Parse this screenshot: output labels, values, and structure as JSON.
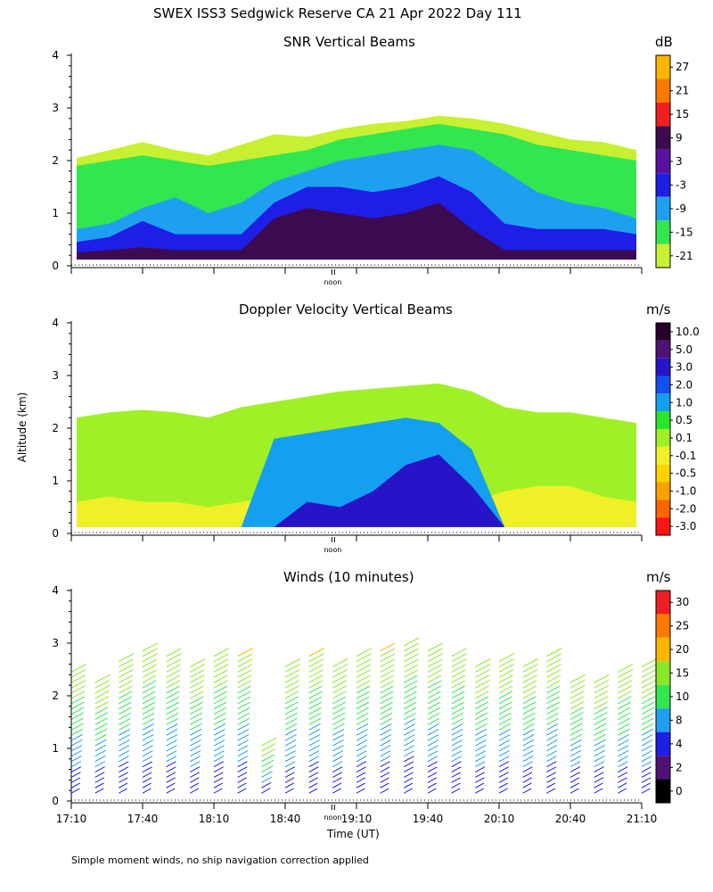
{
  "figure": {
    "title": "SWEX ISS3 Sedgwick Reserve CA  21 Apr 2022 Day 111",
    "ylabel": "Altitude (km)",
    "xlabel": "Time (UT)",
    "footnote": "Simple moment winds, no ship navigation correction applied",
    "noon_label": "noon",
    "x_tick_labels": [
      "17:10",
      "17:40",
      "18:10",
      "18:40",
      "19:10",
      "19:40",
      "20:10",
      "20:40",
      "21:10"
    ],
    "y_tick_labels": [
      "0",
      "1",
      "2",
      "3",
      "4"
    ]
  },
  "chart_data": [
    {
      "type": "heatmap",
      "title": "SNR Vertical Beams",
      "unit": "dB",
      "ylim": [
        0,
        4
      ],
      "xlim": [
        "17:10",
        "21:10"
      ],
      "colorbar": {
        "labels": [
          "27",
          "21",
          "15",
          "9",
          "3",
          "-3",
          "-9",
          "-15",
          "-21"
        ],
        "colors": [
          "#ffb400",
          "#ff7800",
          "#f01e1e",
          "#3c0a50",
          "#5a10a0",
          "#1e1ee6",
          "#1ea0f0",
          "#32e650",
          "#c8f032"
        ]
      },
      "layers": [
        {
          "name": "low",
          "color": "#c8f032",
          "top": [
            2.05,
            2.2,
            2.35,
            2.2,
            2.1,
            2.3,
            2.5,
            2.45,
            2.6,
            2.7,
            2.75,
            2.85,
            2.8,
            2.7,
            2.55,
            2.4,
            2.35,
            2.2
          ]
        },
        {
          "name": "mid",
          "color": "#32e650",
          "top": [
            1.9,
            2.0,
            2.1,
            2.0,
            1.9,
            2.0,
            2.1,
            2.2,
            2.4,
            2.5,
            2.6,
            2.7,
            2.6,
            2.5,
            2.3,
            2.2,
            2.1,
            2.0
          ]
        },
        {
          "name": "midhi",
          "color": "#1ea0f0",
          "top": [
            0.7,
            0.8,
            1.1,
            1.3,
            1.0,
            1.2,
            1.6,
            1.8,
            2.0,
            2.1,
            2.2,
            2.3,
            2.2,
            1.8,
            1.4,
            1.2,
            1.1,
            0.9
          ]
        },
        {
          "name": "high",
          "color": "#1e1ee6",
          "top": [
            0.45,
            0.55,
            0.85,
            0.6,
            0.6,
            0.6,
            1.2,
            1.5,
            1.5,
            1.4,
            1.5,
            1.7,
            1.4,
            0.8,
            0.7,
            0.7,
            0.7,
            0.6
          ]
        },
        {
          "name": "strong",
          "color": "#3c0a50",
          "top": [
            0.25,
            0.3,
            0.35,
            0.3,
            0.3,
            0.3,
            0.9,
            1.1,
            1.0,
            0.9,
            1.0,
            1.2,
            0.7,
            0.3,
            0.3,
            0.3,
            0.3,
            0.3
          ]
        }
      ]
    },
    {
      "type": "heatmap",
      "title": "Doppler Velocity Vertical Beams",
      "unit": "m/s",
      "ylim": [
        0,
        4
      ],
      "xlim": [
        "17:10",
        "21:10"
      ],
      "colorbar": {
        "labels": [
          "10.0",
          "5.0",
          "3.0",
          "2.0",
          "1.0",
          "0.5",
          "0.1",
          "-0.1",
          "-0.5",
          "-1.0",
          "-2.0",
          "-3.0"
        ],
        "colors": [
          "#28002a",
          "#501078",
          "#2814c8",
          "#1450f0",
          "#14a0f0",
          "#28e628",
          "#a0f028",
          "#f0f028",
          "#ffd200",
          "#ffa000",
          "#ff6400",
          "#ff1414"
        ]
      },
      "layers": [
        {
          "name": "upper",
          "color": "#a0f028",
          "top": [
            2.2,
            2.3,
            2.35,
            2.3,
            2.2,
            2.4,
            2.5,
            2.6,
            2.7,
            2.75,
            2.8,
            2.85,
            2.7,
            2.4,
            2.3,
            2.3,
            2.2,
            2.1
          ]
        },
        {
          "name": "lowband",
          "color": "#f0f028",
          "top": [
            0.6,
            0.7,
            0.6,
            0.6,
            0.5,
            0.6,
            0.7,
            0.6,
            0.6,
            0.6,
            0.5,
            0.5,
            0.6,
            0.8,
            0.9,
            0.9,
            0.7,
            0.6
          ]
        },
        {
          "name": "updraft",
          "color": "#14a0f0",
          "top": [
            0,
            0,
            0,
            0,
            0,
            0,
            1.8,
            1.9,
            2.0,
            2.1,
            2.2,
            2.1,
            1.6,
            0,
            0,
            0,
            0,
            0
          ]
        },
        {
          "name": "core",
          "color": "#2814c8",
          "top": [
            0,
            0,
            0,
            0,
            0,
            0,
            0,
            0.6,
            0.5,
            0.8,
            1.3,
            1.5,
            0.9,
            0,
            0,
            0,
            0,
            0
          ]
        }
      ]
    },
    {
      "type": "scatter",
      "title": "Winds (10 minutes)",
      "unit": "m/s",
      "ylim": [
        0,
        4
      ],
      "xlim": [
        "17:10",
        "21:10"
      ],
      "colorbar": {
        "labels": [
          "30",
          "25",
          "20",
          "15",
          "10",
          "8",
          "4",
          "2",
          "0"
        ],
        "colors": [
          "#f01e1e",
          "#ff7800",
          "#ffb400",
          "#8ce628",
          "#32e650",
          "#1ea0f0",
          "#1e1ee6",
          "#501078",
          "#000000"
        ]
      },
      "profile_times": [
        "17:10",
        "17:20",
        "17:30",
        "17:40",
        "17:50",
        "18:00",
        "18:10",
        "18:20",
        "18:30",
        "18:40",
        "18:50",
        "19:00",
        "19:10",
        "19:20",
        "19:30",
        "19:40",
        "19:50",
        "20:00",
        "20:10",
        "20:20",
        "20:30",
        "20:40",
        "20:50",
        "21:00",
        "21:10"
      ],
      "profile_tops_km": [
        2.5,
        2.3,
        2.7,
        2.9,
        2.8,
        2.6,
        2.8,
        2.75,
        1.1,
        2.6,
        2.75,
        2.6,
        2.8,
        2.85,
        3.05,
        2.9,
        2.8,
        2.6,
        2.7,
        2.6,
        2.8,
        2.3,
        2.3,
        2.5,
        2.6
      ]
    }
  ]
}
